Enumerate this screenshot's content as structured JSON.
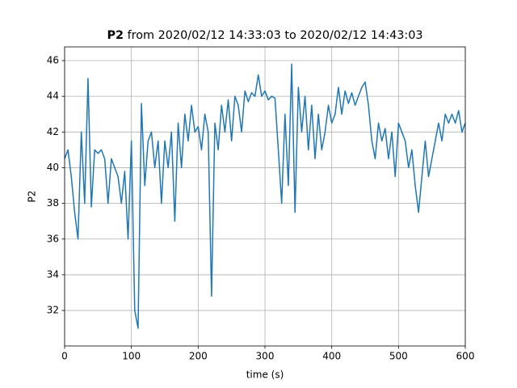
{
  "chart_data": {
    "type": "line",
    "title": {
      "variable": "P2",
      "text": "from 2020/02/12 14:33:03 to 2020/02/12 14:43:03"
    },
    "x_label": "time (s)",
    "y_label": "P2",
    "x": [
      0,
      5,
      10,
      15,
      20,
      25,
      30,
      35,
      40,
      45,
      50,
      55,
      60,
      65,
      70,
      75,
      80,
      85,
      90,
      95,
      100,
      105,
      110,
      115,
      120,
      125,
      130,
      135,
      140,
      145,
      150,
      155,
      160,
      165,
      170,
      175,
      180,
      185,
      190,
      195,
      200,
      205,
      210,
      215,
      220,
      225,
      230,
      235,
      240,
      245,
      250,
      255,
      260,
      265,
      270,
      275,
      280,
      285,
      290,
      295,
      300,
      305,
      310,
      315,
      320,
      325,
      330,
      335,
      340,
      345,
      350,
      355,
      360,
      365,
      370,
      375,
      380,
      385,
      390,
      395,
      400,
      405,
      410,
      415,
      420,
      425,
      430,
      435,
      440,
      445,
      450,
      455,
      460,
      465,
      470,
      475,
      480,
      485,
      490,
      495,
      500,
      505,
      510,
      515,
      520,
      525,
      530,
      535,
      540,
      545,
      550,
      555,
      560,
      565,
      570,
      575,
      580,
      585,
      590,
      595,
      600
    ],
    "series": [
      {
        "name": "P2",
        "color": "#1f77b4",
        "values": [
          40.5,
          41,
          39.5,
          37.5,
          36,
          42,
          38,
          45,
          37.8,
          41,
          40.8,
          41,
          40.5,
          38,
          40.5,
          40,
          39.5,
          38,
          39.8,
          36,
          41.5,
          32,
          31,
          43.6,
          39,
          41.5,
          42,
          40,
          41.5,
          38,
          41.5,
          40,
          42,
          37,
          42.5,
          40,
          43,
          41.5,
          43.5,
          42,
          42.3,
          41,
          43,
          42,
          32.8,
          42.5,
          41,
          43.5,
          42,
          43.8,
          41.5,
          44,
          43.5,
          42,
          44.3,
          43.7,
          44.2,
          44,
          45.2,
          44,
          44.3,
          43.8,
          44,
          43.9,
          41,
          38,
          43,
          39,
          45.8,
          37.5,
          44.5,
          42,
          44,
          41,
          43.5,
          40.5,
          43,
          41,
          42,
          43.5,
          42.5,
          43,
          44.5,
          43,
          44.3,
          43.6,
          44.2,
          43.5,
          44,
          44.5,
          44.8,
          43.5,
          41.5,
          40.5,
          42.5,
          41.5,
          42.2,
          40.5,
          42,
          39.5,
          42.5,
          42,
          41.5,
          40,
          41,
          39,
          37.5,
          39.5,
          41.5,
          39.5,
          40.5,
          41.5,
          42.5,
          41.5,
          43,
          42.5,
          43,
          42.5,
          43.2,
          42,
          42.5
        ]
      }
    ],
    "xlim": [
      0,
      600
    ],
    "xticks": [
      0,
      100,
      200,
      300,
      400,
      500,
      600
    ],
    "ylim": [
      30.01,
      46.77
    ],
    "yticks": [
      32,
      34,
      36,
      38,
      40,
      42,
      44,
      46
    ],
    "grid": true
  }
}
